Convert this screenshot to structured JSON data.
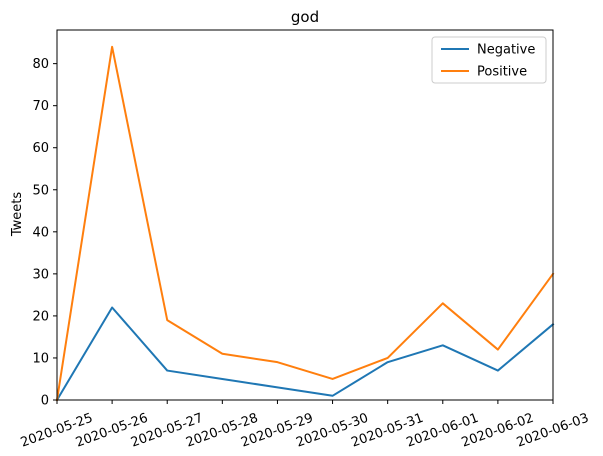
{
  "chart_data": {
    "type": "line",
    "title": "god",
    "xlabel": "",
    "ylabel": "Tweets",
    "x": [
      "2020-05-25",
      "2020-05-26",
      "2020-05-27",
      "2020-05-28",
      "2020-05-29",
      "2020-05-30",
      "2020-05-31",
      "2020-06-01",
      "2020-06-02",
      "2020-06-03"
    ],
    "series": [
      {
        "name": "Negative",
        "color": "#1f77b4",
        "values": [
          0,
          22,
          7,
          5,
          3,
          1,
          9,
          13,
          7,
          18
        ]
      },
      {
        "name": "Positive",
        "color": "#ff7f0e",
        "values": [
          0,
          84,
          19,
          11,
          9,
          5,
          10,
          23,
          12,
          30
        ]
      }
    ],
    "ylim": [
      0,
      88
    ],
    "yticks": [
      0,
      10,
      20,
      30,
      40,
      50,
      60,
      70,
      80
    ],
    "grid": false,
    "legend_position": "top-right"
  }
}
